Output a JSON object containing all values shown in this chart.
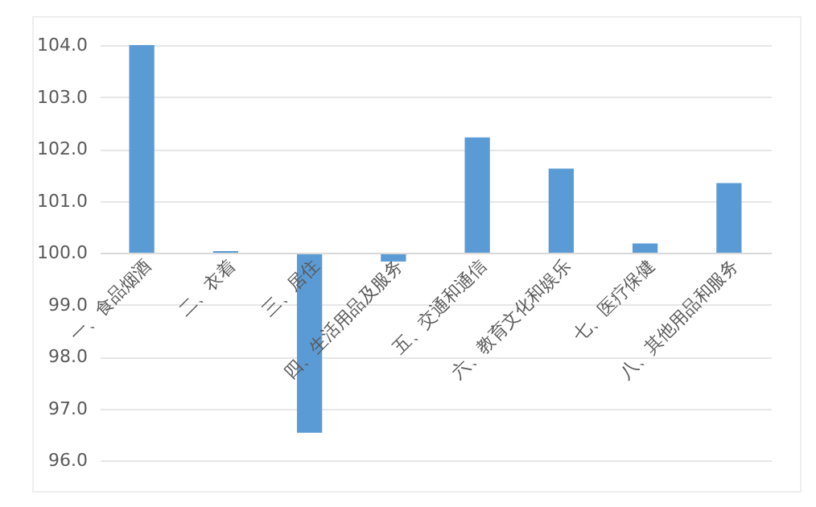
{
  "chart_data": {
    "type": "bar",
    "categories": [
      "一、食品烟酒",
      "二、衣着",
      "三、居住",
      "四、生活用品及服务",
      "五、交通和通信",
      "六、教育文化和娱乐",
      "七、医疗保健",
      "八、其他用品和服务"
    ],
    "base": [
      100,
      100,
      100,
      100,
      100,
      100,
      100,
      100
    ],
    "values": [
      4.0,
      0.03,
      -3.47,
      -0.17,
      2.22,
      1.62,
      0.18,
      1.34
    ],
    "color": "#5b9bd5",
    "ylim": [
      96,
      104
    ],
    "yticks": [
      {
        "value": 96,
        "label": "96.0"
      },
      {
        "value": 97,
        "label": "97.0"
      },
      {
        "value": 98,
        "label": "98.0"
      },
      {
        "value": 99,
        "label": "99.0"
      },
      {
        "value": 100,
        "label": "100.0"
      },
      {
        "value": 101,
        "label": "101.0"
      },
      {
        "value": 102,
        "label": "102.0"
      },
      {
        "value": 103,
        "label": "103.0"
      },
      {
        "value": 104,
        "label": "104.0"
      }
    ],
    "grid": "y"
  }
}
